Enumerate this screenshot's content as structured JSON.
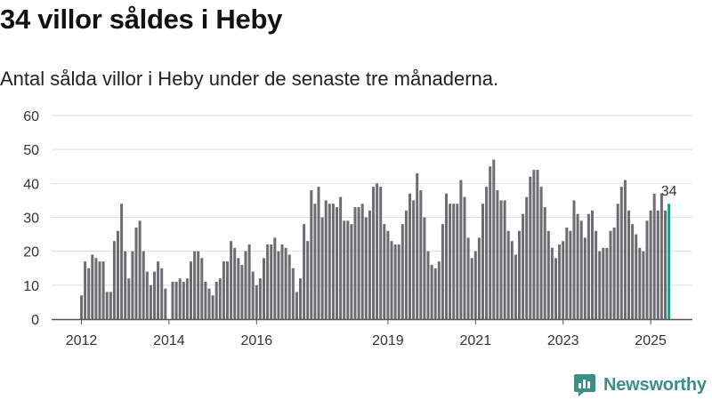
{
  "title": "34 villor såldes i Heby",
  "subtitle": "Antal sålda villor i Heby under de senaste tre månaderna.",
  "brand": "Newsworthy",
  "colors": {
    "bar": "#6d6c70",
    "highlight": "#1f9c8d",
    "grid": "#dedede",
    "axis": "#555555",
    "brand": "#3a8f86"
  },
  "chart_data": {
    "type": "bar",
    "title": "34 villor såldes i Heby",
    "xlabel": "",
    "ylabel": "",
    "ylim": [
      0,
      60
    ],
    "yticks": [
      0,
      10,
      20,
      30,
      40,
      50,
      60
    ],
    "grid": true,
    "start": "2012-01",
    "x_ticks": [
      {
        "label": "2012",
        "index": 0
      },
      {
        "label": "2014",
        "index": 24
      },
      {
        "label": "2016",
        "index": 48
      },
      {
        "label": "2019",
        "index": 84
      },
      {
        "label": "2021",
        "index": 108
      },
      {
        "label": "2023",
        "index": 132
      },
      {
        "label": "2025",
        "index": 156
      }
    ],
    "values": [
      7,
      17,
      15,
      19,
      18,
      17,
      17,
      8,
      8,
      23,
      26,
      34,
      20,
      12,
      20,
      27,
      29,
      20,
      14,
      10,
      14,
      17,
      15,
      9,
      null,
      11,
      11,
      12,
      11,
      12,
      17,
      20,
      20,
      18,
      11,
      9,
      7,
      11,
      12,
      17,
      17,
      23,
      21,
      18,
      16,
      20,
      22,
      14,
      10,
      12,
      18,
      22,
      22,
      24,
      20,
      22,
      21,
      19,
      15,
      8,
      12,
      28,
      23,
      38,
      34,
      39,
      30,
      35,
      34,
      34,
      33,
      36,
      29,
      29,
      28,
      33,
      33,
      34,
      30,
      32,
      39,
      40,
      39,
      28,
      26,
      23,
      22,
      22,
      28,
      32,
      37,
      35,
      43,
      38,
      30,
      20,
      16,
      15,
      17,
      28,
      37,
      34,
      34,
      34,
      41,
      36,
      24,
      18,
      20,
      24,
      34,
      39,
      45,
      47,
      38,
      35,
      35,
      26,
      23,
      19,
      26,
      31,
      36,
      42,
      44,
      44,
      39,
      33,
      26,
      21,
      18,
      22,
      23,
      27,
      26,
      35,
      31,
      29,
      24,
      31,
      32,
      26,
      20,
      21,
      21,
      26,
      27,
      34,
      39,
      41,
      32,
      28,
      25,
      21,
      20,
      29,
      32,
      37,
      32,
      37,
      32,
      34
    ],
    "highlight_last": true,
    "last_label": "34"
  }
}
